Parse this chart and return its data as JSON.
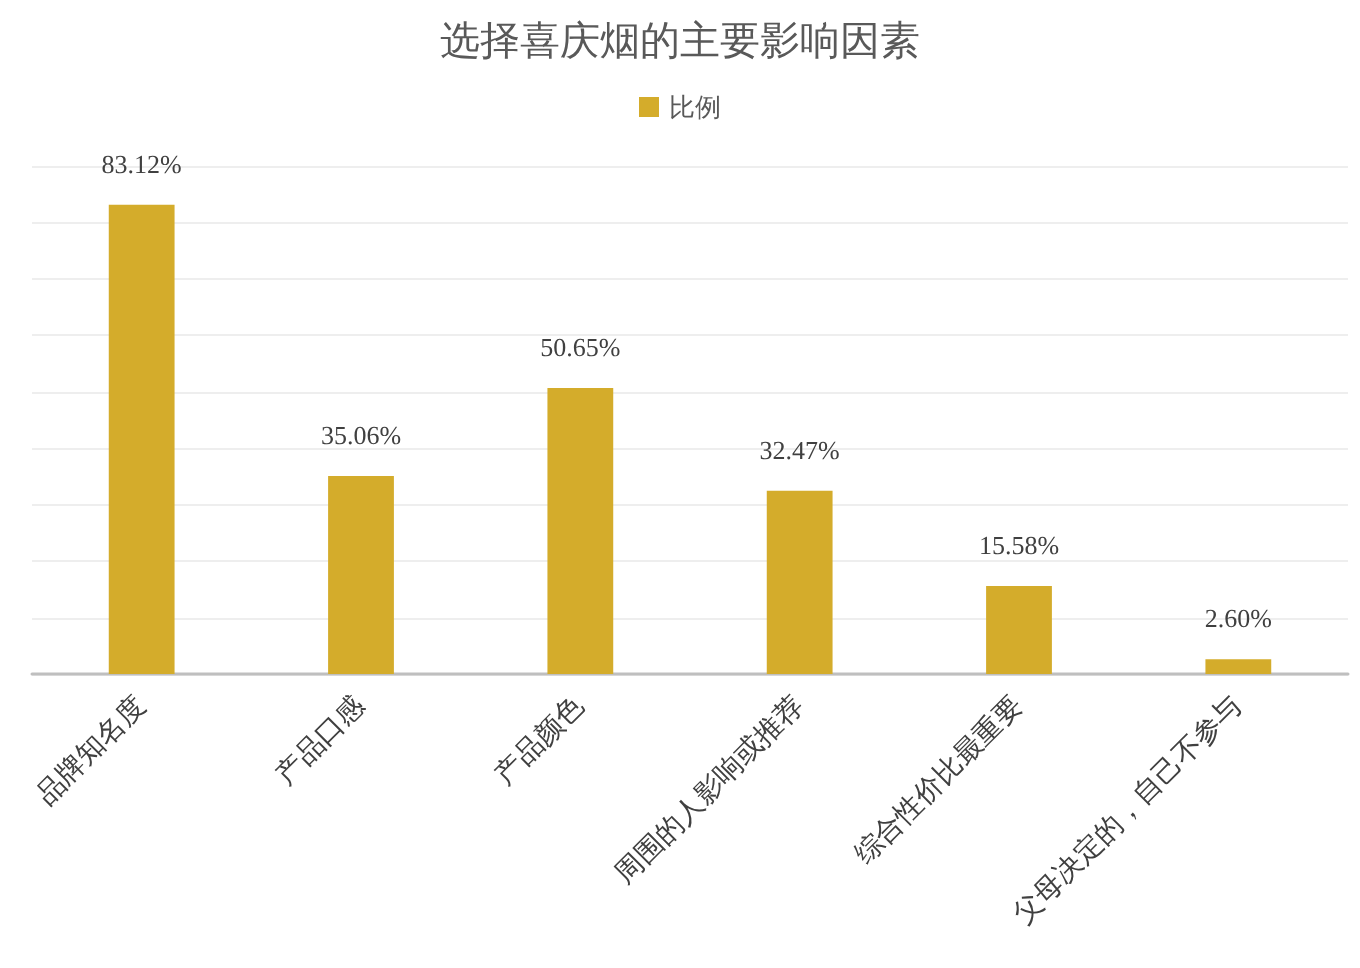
{
  "chart_data": {
    "type": "bar",
    "title": "选择喜庆烟的主要影响因素",
    "categories": [
      "品牌知名度",
      "产品口感",
      "产品颜色",
      "周围的人影响或推荐",
      "综合性价比最重要",
      "父母决定的，自己不参与"
    ],
    "series": [
      {
        "name": "比例",
        "color": "#d4ac2b",
        "values": [
          83.12,
          35.06,
          50.65,
          32.47,
          15.58,
          2.6
        ],
        "value_labels": [
          "83.12%",
          "35.06%",
          "50.65%",
          "32.47%",
          "15.58%",
          "2.60%"
        ]
      }
    ],
    "ylim": [
      0,
      90
    ],
    "yticks": [
      {
        "value": 0,
        "label": null
      },
      {
        "value": 10,
        "label": null
      },
      {
        "value": 20,
        "label": null
      },
      {
        "value": 30,
        "label": null
      },
      {
        "value": 40,
        "label": null
      },
      {
        "value": 50,
        "label": null
      },
      {
        "value": 60,
        "label": null
      },
      {
        "value": 70,
        "label": null
      },
      {
        "value": 80,
        "label": null
      },
      {
        "value": 90,
        "label": null
      }
    ],
    "tick_labels": "x",
    "grid": "y",
    "legend": "top"
  }
}
